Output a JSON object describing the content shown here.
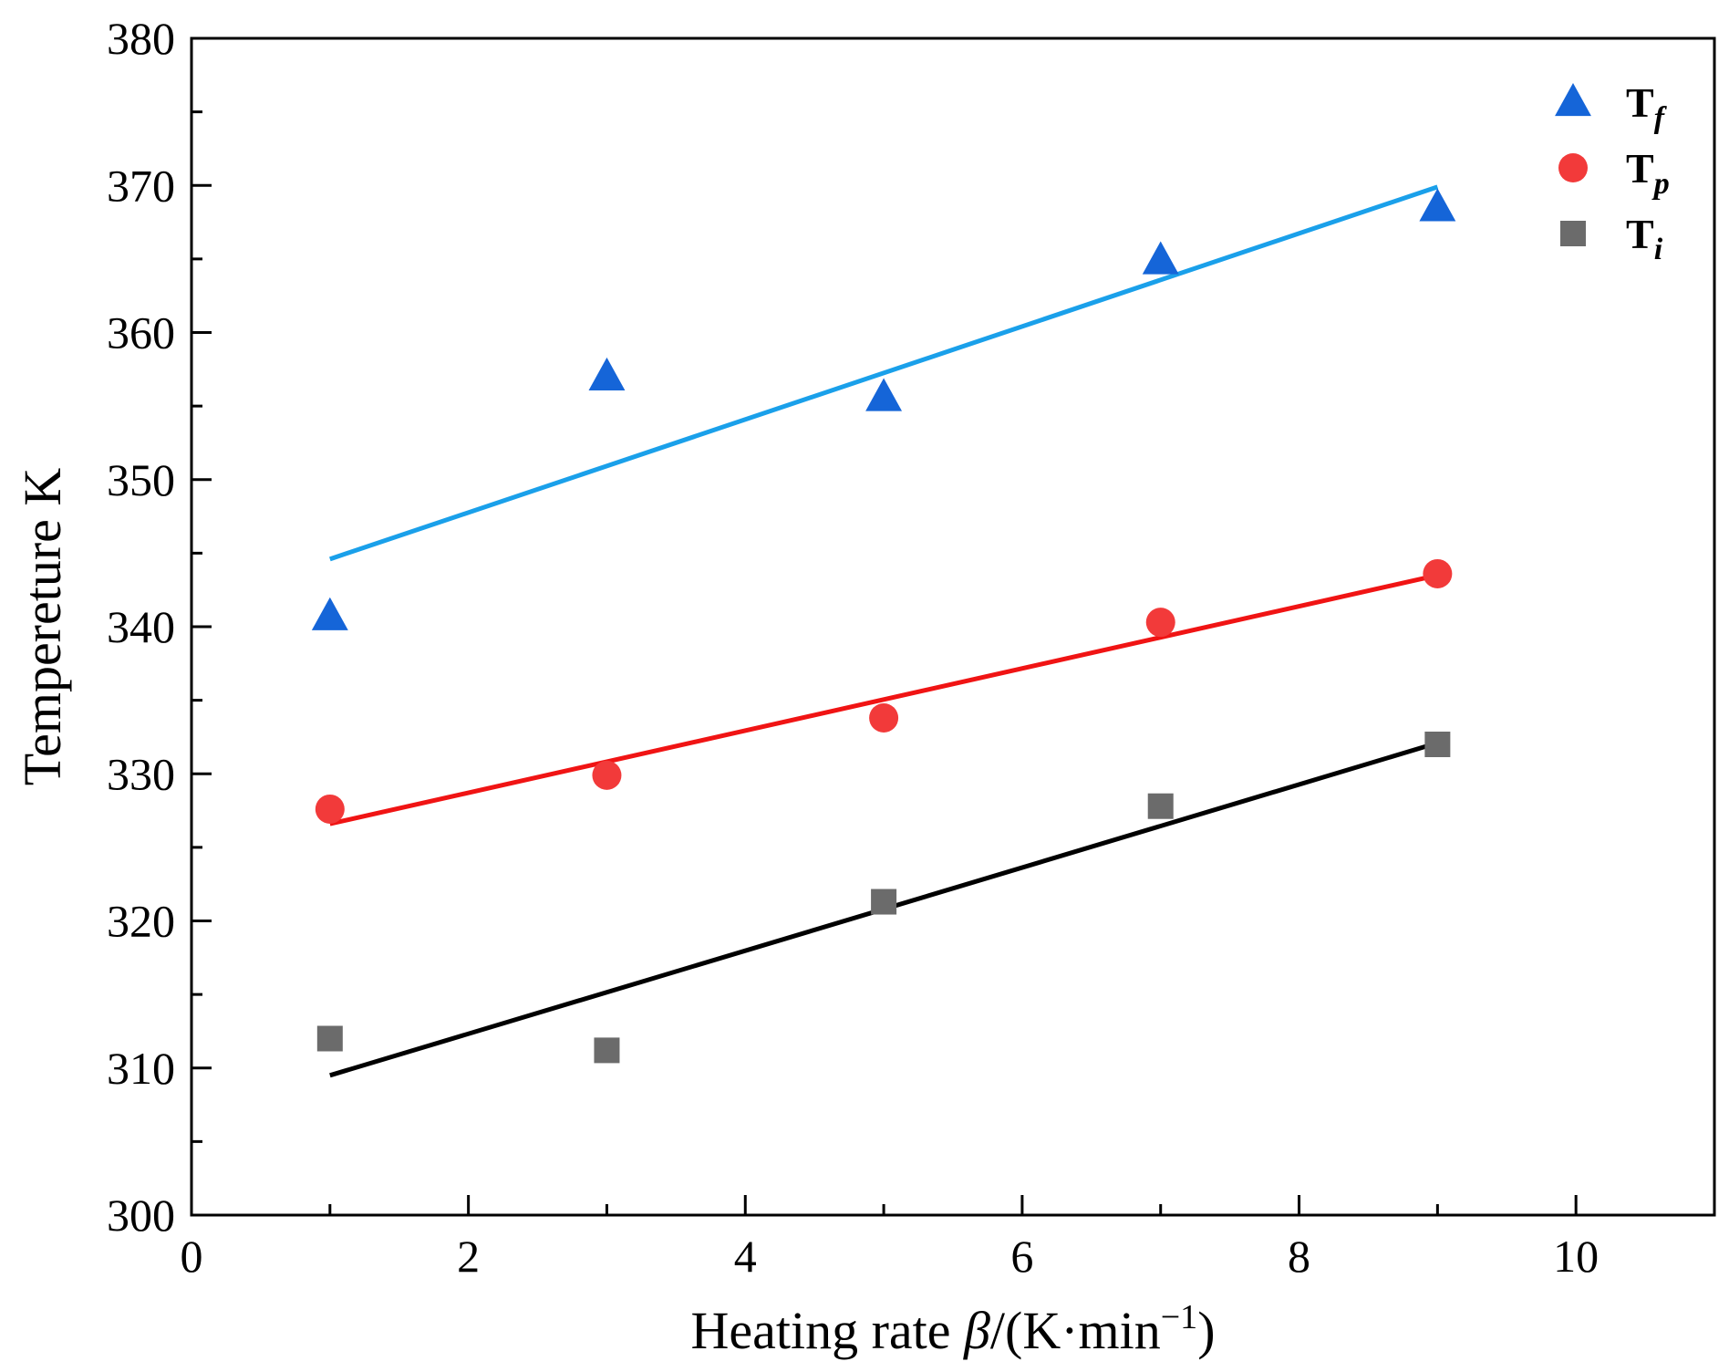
{
  "chart_data": {
    "type": "scatter",
    "xlabel_main": "Heating rate",
    "xlabel_beta": "β",
    "xlabel_unit": "/(K·min",
    "xlabel_exp": "−1",
    "xlabel_close": ")",
    "ylabel": "Tempereture K",
    "xlim": [
      0,
      11
    ],
    "ylim": [
      300,
      380
    ],
    "xticks": [
      0,
      2,
      4,
      6,
      8,
      10
    ],
    "yticks": [
      300,
      310,
      320,
      330,
      340,
      350,
      360,
      370,
      380
    ],
    "legend_position": "top-right",
    "series": [
      {
        "name": "T",
        "sub": "f",
        "marker": "triangle",
        "color": "#1565d8",
        "fit_color": "#1aa0ea",
        "x": [
          1,
          3,
          5,
          7,
          9
        ],
        "y": [
          340.7,
          357.0,
          355.6,
          364.9,
          368.5
        ],
        "fit": {
          "x": [
            1,
            9
          ],
          "y": [
            344.6,
            369.9
          ]
        }
      },
      {
        "name": "T",
        "sub": "p",
        "marker": "circle",
        "color": "#f23a3a",
        "fit_color": "#f01414",
        "x": [
          1,
          3,
          5,
          7,
          9
        ],
        "y": [
          327.6,
          329.9,
          333.8,
          340.3,
          343.6
        ],
        "fit": {
          "x": [
            1,
            9
          ],
          "y": [
            326.6,
            343.5
          ]
        }
      },
      {
        "name": "T",
        "sub": "i",
        "marker": "square",
        "color": "#6b6b6b",
        "fit_color": "#000000",
        "x": [
          1,
          3,
          5,
          7,
          9
        ],
        "y": [
          312.0,
          311.2,
          321.3,
          327.8,
          332.0
        ],
        "fit": {
          "x": [
            1,
            9
          ],
          "y": [
            309.5,
            332.1
          ]
        }
      }
    ]
  }
}
